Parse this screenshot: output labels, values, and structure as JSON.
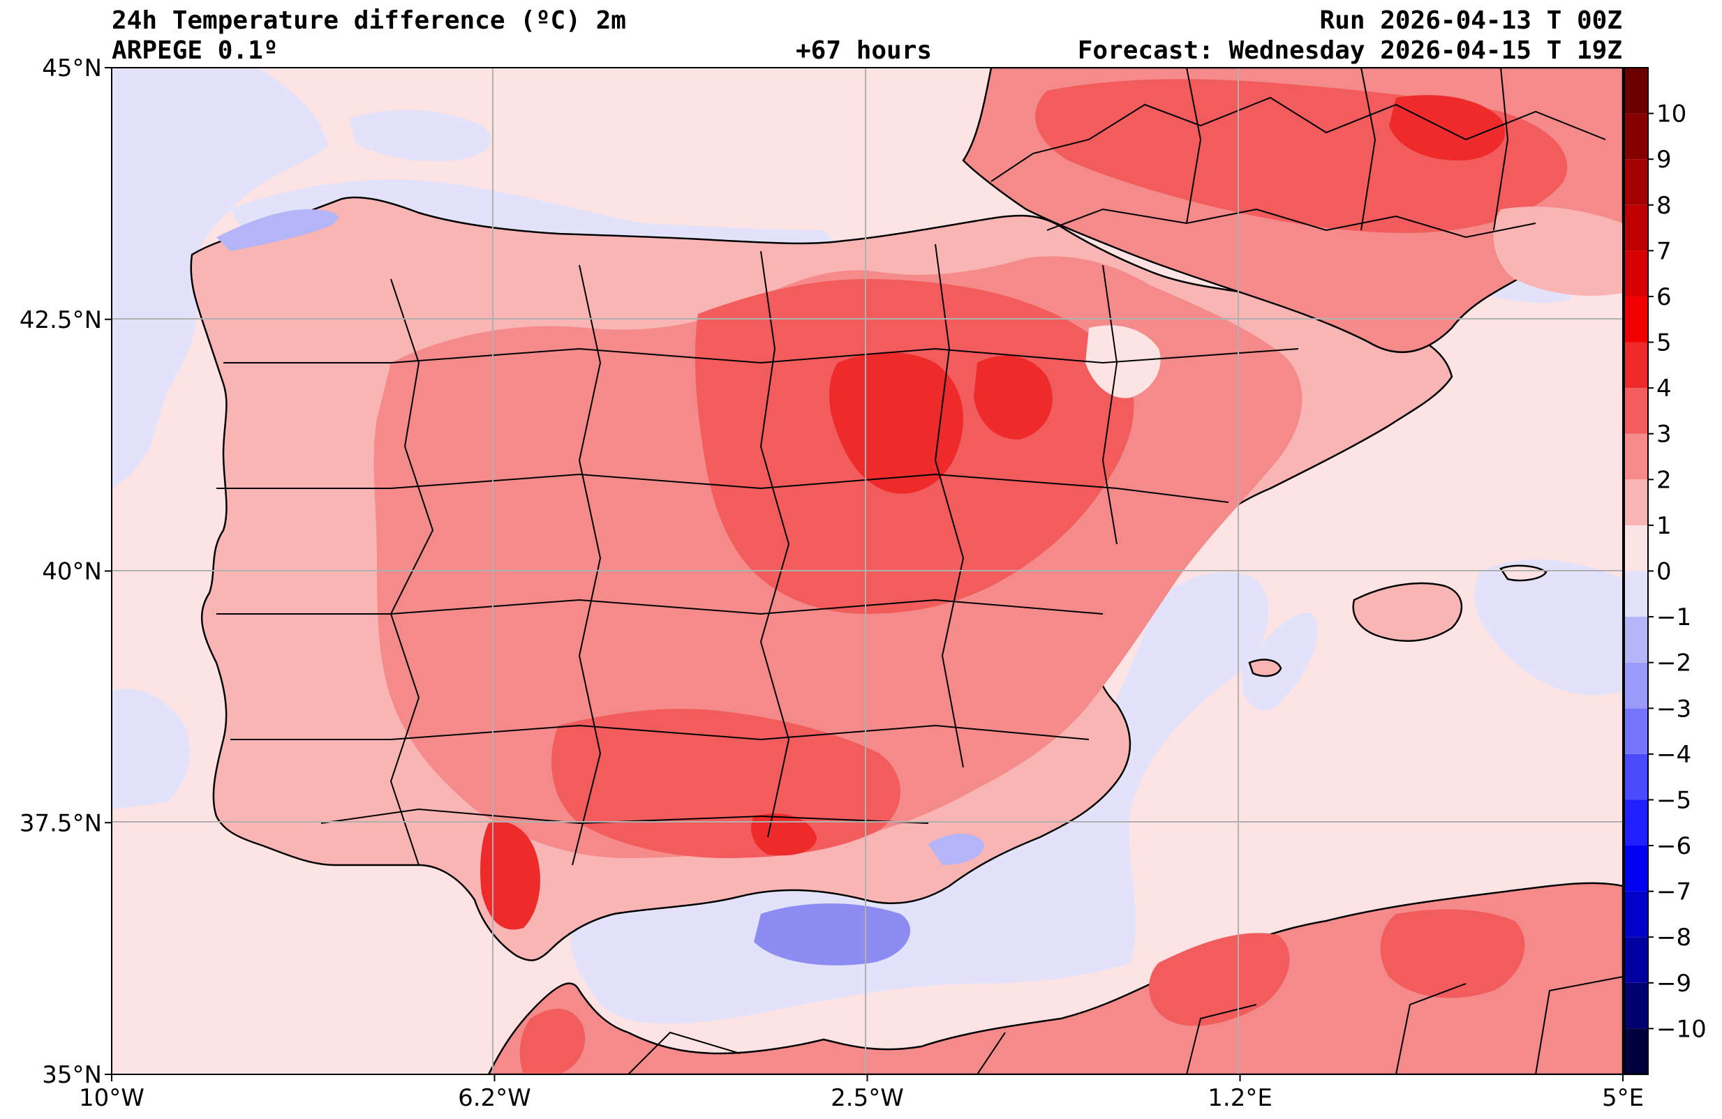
{
  "header": {
    "title": "24h Temperature difference (ºC) 2m",
    "model": "ARPEGE 0.1º",
    "lead": "+67 hours",
    "run": "Run 2026-04-13 T 00Z",
    "forecast": "Forecast: Wednesday 2026-04-15 T 19Z"
  },
  "map": {
    "lon_range": [
      -10,
      5
    ],
    "lat_range": [
      35,
      45
    ],
    "lon_ticks": [
      {
        "value": -10,
        "label": "10°W"
      },
      {
        "value": -6.2,
        "label": "6.2°W"
      },
      {
        "value": -2.5,
        "label": "2.5°W"
      },
      {
        "value": 1.2,
        "label": "1.2°E"
      },
      {
        "value": 5,
        "label": "5°E"
      }
    ],
    "lat_ticks": [
      {
        "value": 45,
        "label": "45°N"
      },
      {
        "value": 42.5,
        "label": "42.5°N"
      },
      {
        "value": 40,
        "label": "40°N"
      },
      {
        "value": 37.5,
        "label": "37.5°N"
      },
      {
        "value": 35,
        "label": "35°N"
      }
    ],
    "gridlines": true,
    "background_value_sea": "0 to 1 (light pink)",
    "colors": {
      "sea_neutral": "#fde3e3",
      "cool_light": "#e2e2fb",
      "warm_1": "#f9b4b4",
      "warm_2": "#f58a8a",
      "warm_3": "#f25c5c",
      "warm_4": "#ee2a2a",
      "cool_2": "#b4b4f8",
      "cool_3": "#8c8cf3"
    }
  },
  "colorbar": {
    "ticks": [
      {
        "value": 10,
        "label": "10"
      },
      {
        "value": 9,
        "label": "9"
      },
      {
        "value": 8,
        "label": "8"
      },
      {
        "value": 7,
        "label": "7"
      },
      {
        "value": 6,
        "label": "6"
      },
      {
        "value": 5,
        "label": "5"
      },
      {
        "value": 4,
        "label": "4"
      },
      {
        "value": 3,
        "label": "3"
      },
      {
        "value": 2,
        "label": "2"
      },
      {
        "value": 1,
        "label": "1"
      },
      {
        "value": 0,
        "label": "0"
      },
      {
        "value": -1,
        "label": "−1"
      },
      {
        "value": -2,
        "label": "−2"
      },
      {
        "value": -3,
        "label": "−3"
      },
      {
        "value": -4,
        "label": "−4"
      },
      {
        "value": -5,
        "label": "−5"
      },
      {
        "value": -6,
        "label": "−6"
      },
      {
        "value": -7,
        "label": "−7"
      },
      {
        "value": -8,
        "label": "−8"
      },
      {
        "value": -9,
        "label": "−9"
      },
      {
        "value": -10,
        "label": "−10"
      }
    ],
    "range": [
      -11,
      11
    ],
    "colors": [
      "#00003c",
      "#000070",
      "#0000a0",
      "#0000c8",
      "#0000f0",
      "#1e1eff",
      "#4a4aff",
      "#7474fc",
      "#9a9afa",
      "#b4b4f8",
      "#e2e2fb",
      "#fde3e3",
      "#f9b4b4",
      "#f58a8a",
      "#f25c5c",
      "#ee2a2a",
      "#f00000",
      "#d80000",
      "#bf0000",
      "#a30000",
      "#870000",
      "#6a0000"
    ]
  }
}
